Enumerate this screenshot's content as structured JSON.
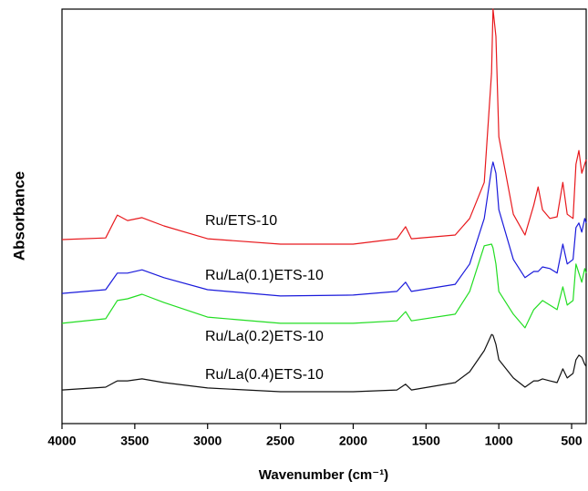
{
  "chart_data": {
    "type": "line",
    "x_label": "Wavenumber (cm⁻¹)",
    "y_label": "Absorbance",
    "xlim": [
      4000,
      400
    ],
    "ylim": [
      0,
      100
    ],
    "xticks": [
      4000,
      3500,
      3000,
      2500,
      2000,
      1500,
      1000,
      500
    ],
    "grid": false,
    "x": [
      4000,
      3700,
      3620,
      3550,
      3450,
      3300,
      3000,
      2500,
      2000,
      1700,
      1640,
      1600,
      1300,
      1200,
      1100,
      1050,
      1040,
      1020,
      1000,
      900,
      820,
      760,
      730,
      700,
      650,
      600,
      560,
      530,
      490,
      470,
      450,
      430,
      410,
      400
    ],
    "series": [
      {
        "name": "Ru/ETS-10",
        "color": "#e8191d",
        "values": [
          44.4,
          44.8,
          50.3,
          49.0,
          49.7,
          47.7,
          44.6,
          43.3,
          43.3,
          44.6,
          47.5,
          44.6,
          45.5,
          49.5,
          58.2,
          84.6,
          100,
          93.4,
          69.2,
          50.5,
          45.5,
          52.7,
          57.1,
          51.6,
          49.5,
          49.9,
          58.2,
          50.5,
          49.5,
          62.6,
          65.9,
          60.4,
          62.6,
          63.7
        ]
      },
      {
        "name": "Ru/La(0.1)ETS-10",
        "color": "#1a1adb",
        "values": [
          31.4,
          32.3,
          36.3,
          36.3,
          37.1,
          35.2,
          32.3,
          30.8,
          31.0,
          31.9,
          34.1,
          31.9,
          33.6,
          38.5,
          49.5,
          61.5,
          63.1,
          60.4,
          51.6,
          39.6,
          35.2,
          36.7,
          36.7,
          37.8,
          37.4,
          36.3,
          43.3,
          38.5,
          39.6,
          47.3,
          48.4,
          46.2,
          49.5,
          48.4
        ]
      },
      {
        "name": "Ru/La(0.2)ETS-10",
        "color": "#22dd22",
        "values": [
          24.2,
          25.3,
          29.7,
          30.1,
          31.2,
          29.2,
          25.7,
          24.2,
          24.2,
          24.8,
          27.0,
          24.8,
          26.4,
          31.9,
          42.9,
          43.3,
          42.4,
          38.5,
          31.9,
          26.4,
          23.1,
          27.5,
          28.6,
          29.7,
          28.6,
          27.5,
          33.0,
          28.6,
          29.7,
          38.5,
          36.3,
          34.1,
          37.4,
          36.3
        ]
      },
      {
        "name": "Ru/La(0.4)ETS-10",
        "color": "#111111",
        "values": [
          8.1,
          8.8,
          10.3,
          10.3,
          10.8,
          9.9,
          8.6,
          7.7,
          7.7,
          8.1,
          9.5,
          8.1,
          9.9,
          12.5,
          17.6,
          21.5,
          21.3,
          19.1,
          15.4,
          11.0,
          8.8,
          10.3,
          10.3,
          10.8,
          10.3,
          9.9,
          13.2,
          11.0,
          12.1,
          15.4,
          16.5,
          16.0,
          14.3,
          13.8
        ]
      }
    ]
  }
}
